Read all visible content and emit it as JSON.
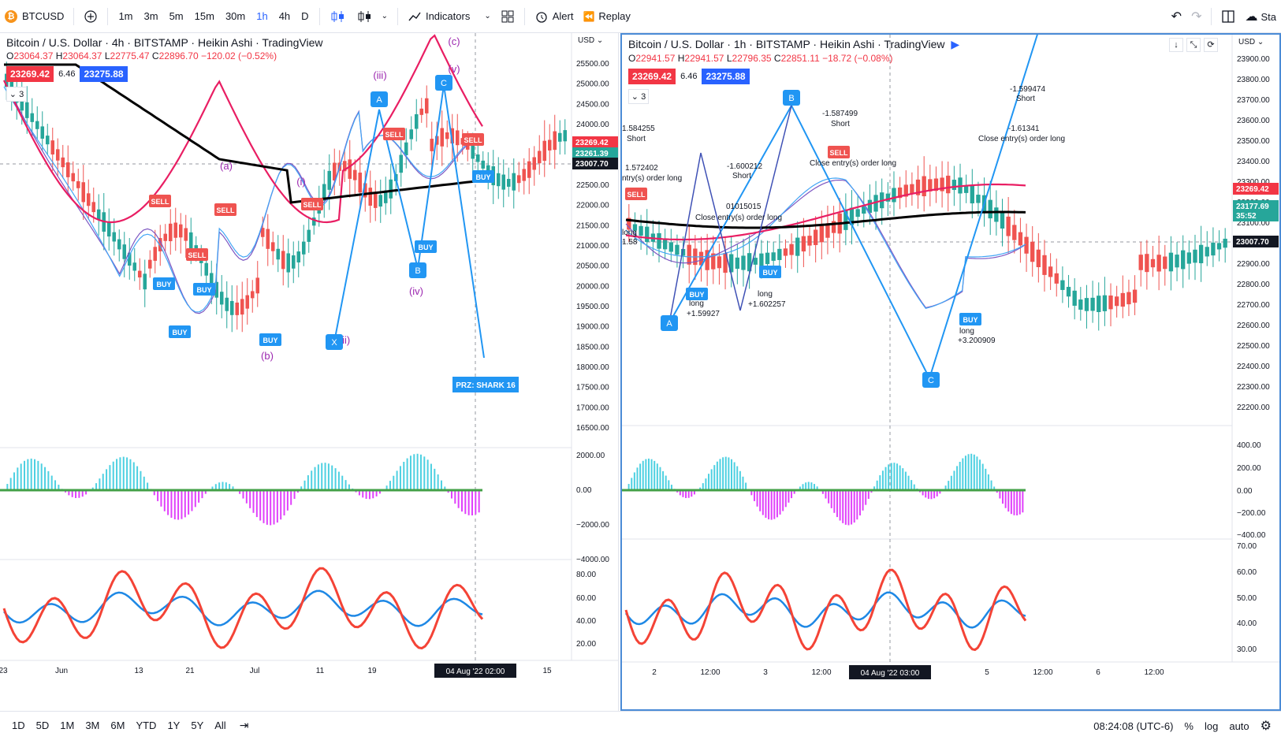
{
  "toolbar": {
    "symbol": "BTCUSD",
    "symbol_icon": "bitcoin-logo",
    "intervals": [
      "1m",
      "3m",
      "5m",
      "15m",
      "30m",
      "1h",
      "4h",
      "D"
    ],
    "active_interval": "1h",
    "indicators_label": "Indicators",
    "alert_label": "Alert",
    "replay_label": "Replay",
    "right_label": "Sta"
  },
  "left_chart": {
    "title": "Bitcoin / U.S. Dollar · 4h · BITSTAMP · Heikin Ashi · TradingView",
    "ohlc": {
      "o": "23064.37",
      "h": "23064.37",
      "l": "22775.47",
      "c": "22896.70",
      "change": "−120.02 (−0.52%)"
    },
    "bid": "23269.42",
    "spread": "6.46",
    "ask": "23275.88",
    "collapse_count": "3",
    "currency_label": "USD",
    "price_ticks": [
      "25500.00",
      "25000.00",
      "24500.00",
      "24000.00",
      "23500.00",
      "23000.00",
      "22500.00",
      "22000.00",
      "21500.00",
      "21000.00",
      "20500.00",
      "20000.00",
      "19500.00",
      "19000.00",
      "18500.00",
      "18000.00",
      "17500.00",
      "17000.00",
      "16500.00"
    ],
    "macd_ticks": [
      "2000.00",
      "0.00",
      "−2000.00",
      "−4000.00"
    ],
    "rsi_ticks": [
      "80.00",
      "60.00",
      "40.00",
      "20.00"
    ],
    "price_labels": [
      {
        "text": "23269.42",
        "color": "#f23645"
      },
      {
        "text": "23261.39",
        "color": "#26a69a"
      },
      {
        "text": "23007.70",
        "color": "#131722"
      }
    ],
    "time_ticks": [
      "23",
      "Jun",
      "13",
      "21",
      "Jul",
      "11",
      "19",
      "15"
    ],
    "crosshair_time": "04 Aug '22   02:00",
    "wave_labels": [
      "(a)",
      "(b)",
      "(c)",
      "(i)",
      "(ii)",
      "(iii)",
      "(iv)",
      "(v)"
    ],
    "pattern_points": [
      "A",
      "B",
      "C",
      "X"
    ],
    "prz_label": "PRZ: SHARK 16",
    "signals": [
      "SELL",
      "BUY"
    ]
  },
  "right_chart": {
    "title": "Bitcoin / U.S. Dollar · 1h · BITSTAMP · Heikin Ashi · TradingView",
    "ohlc": {
      "o": "22941.57",
      "h": "22941.57",
      "l": "22796.35",
      "c": "22851.11",
      "change": "−18.72 (−0.08%)"
    },
    "bid": "23269.42",
    "spread": "6.46",
    "ask": "23275.88",
    "collapse_count": "3",
    "currency_label": "USD",
    "price_ticks": [
      "23900.00",
      "23800.00",
      "23700.00",
      "23600.00",
      "23500.00",
      "23400.00",
      "23300.00",
      "23200.00",
      "23100.00",
      "23000.00",
      "22900.00",
      "22800.00",
      "22700.00",
      "22600.00",
      "22500.00",
      "22400.00",
      "22300.00",
      "22200.00"
    ],
    "macd_ticks": [
      "400.00",
      "200.00",
      "0.00",
      "−200.00",
      "−400.00"
    ],
    "rsi_ticks": [
      "70.00",
      "60.00",
      "50.00",
      "40.00",
      "30.00"
    ],
    "price_labels": [
      {
        "text": "23269.42",
        "color": "#f23645"
      },
      {
        "text": "23177.69",
        "color": "#26a69a"
      },
      {
        "text": "35:52",
        "color": "#26a69a"
      },
      {
        "text": "23007.70",
        "color": "#131722"
      }
    ],
    "time_ticks": [
      "2",
      "12:00",
      "3",
      "12:00",
      "12:00",
      "5",
      "12:00",
      "6",
      "12:00"
    ],
    "crosshair_time": "04 Aug '22   03:00",
    "pattern_points": [
      "A",
      "B",
      "C"
    ],
    "annotations": [
      "1.584255",
      "Short",
      "1.572402",
      "ntry(s) order long",
      "-1.600212",
      "Short",
      "-1.587499",
      "Short",
      "Close entry(s) order long",
      "01015015",
      "Close entry(s) order long",
      "long",
      "+1.59927",
      "long",
      "+1.602257",
      "-1.599474",
      "Short",
      "-1.61341",
      "Close entry(s) order long",
      "long",
      "+3.200909",
      "1.58",
      "long"
    ]
  },
  "bottombar": {
    "ranges": [
      "1D",
      "5D",
      "1M",
      "3M",
      "6M",
      "YTD",
      "1Y",
      "5Y",
      "All"
    ],
    "clock": "08:24:08 (UTC-6)",
    "percent": "%",
    "log": "log",
    "auto": "auto"
  }
}
